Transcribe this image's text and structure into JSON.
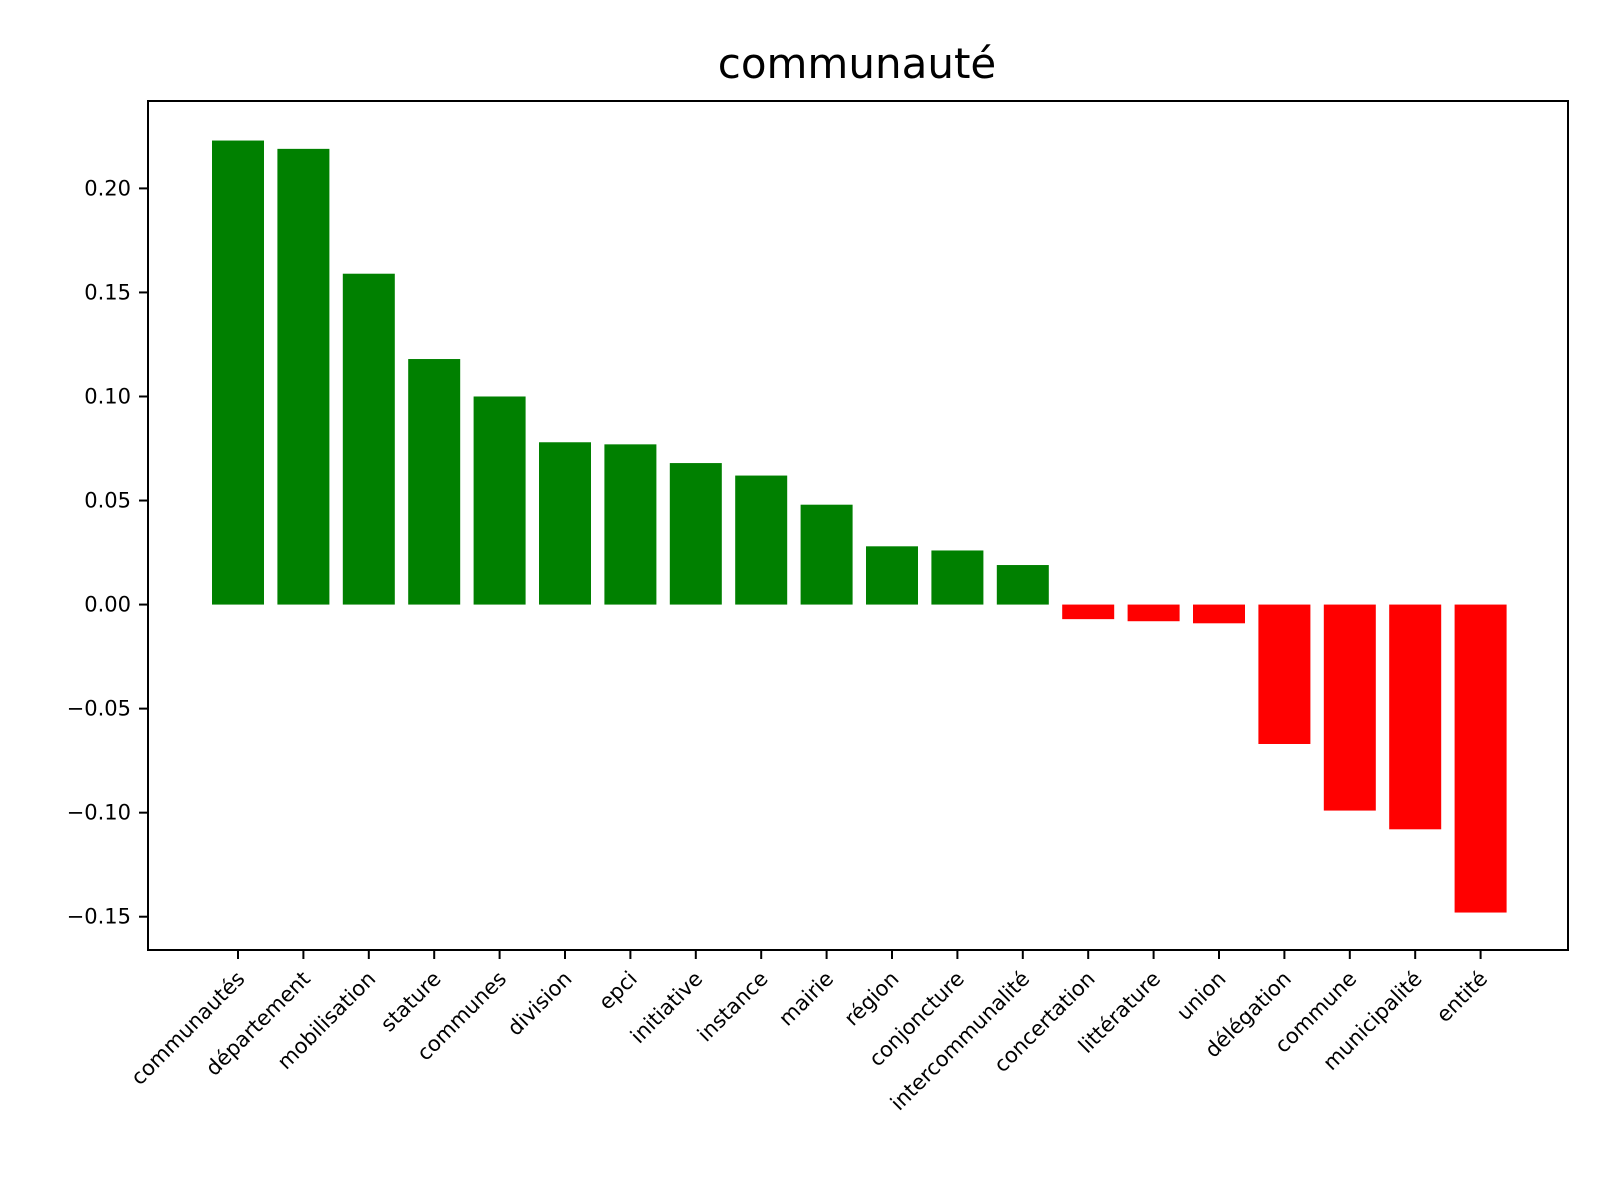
{
  "chart_data": {
    "type": "bar",
    "title": "communauté",
    "xlabel": "",
    "ylabel": "",
    "ylim": [
      -0.166,
      0.242
    ],
    "grid": false,
    "legend": "none",
    "categories": [
      "communautés",
      "département",
      "mobilisation",
      "stature",
      "communes",
      "division",
      "epci",
      "initiative",
      "instance",
      "mairie",
      "région",
      "conjoncture",
      "intercommunalité",
      "concertation",
      "littérature",
      "union",
      "délégation",
      "commune",
      "municipalité",
      "entité"
    ],
    "values": [
      0.223,
      0.219,
      0.159,
      0.118,
      0.1,
      0.078,
      0.077,
      0.068,
      0.062,
      0.048,
      0.028,
      0.026,
      0.019,
      -0.007,
      -0.008,
      -0.009,
      -0.067,
      -0.099,
      -0.108,
      -0.148
    ],
    "y_ticks": [
      {
        "value": 0.2,
        "label": "0.20"
      },
      {
        "value": 0.15,
        "label": "0.15"
      },
      {
        "value": 0.1,
        "label": "0.10"
      },
      {
        "value": 0.05,
        "label": "0.05"
      },
      {
        "value": 0.0,
        "label": "0.00"
      },
      {
        "value": -0.05,
        "label": "−0.05"
      },
      {
        "value": -0.1,
        "label": "−0.10"
      },
      {
        "value": -0.15,
        "label": "−0.15"
      }
    ],
    "colors": {
      "positive": "#008000",
      "negative": "#ff0000",
      "axes": "#000000"
    }
  }
}
